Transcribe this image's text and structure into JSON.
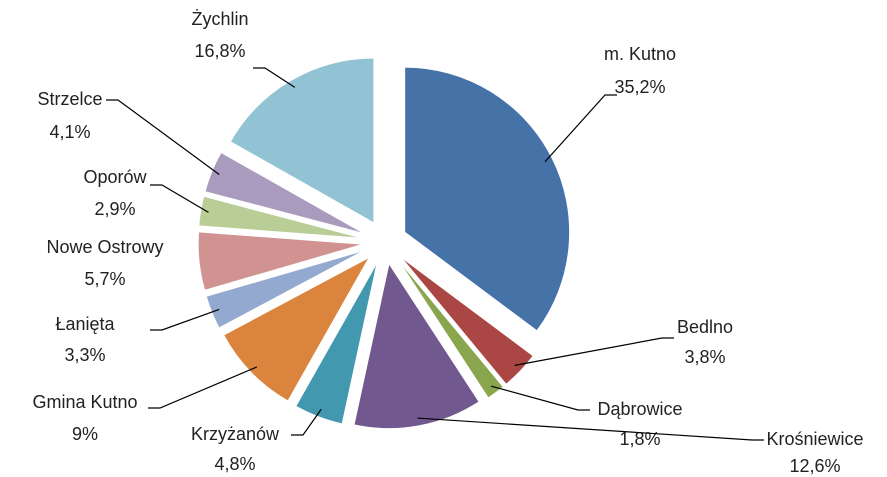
{
  "chart_data": {
    "type": "pie",
    "categories": [
      "m. Kutno",
      "Bedlno",
      "Dąbrowice",
      "Krośniewice",
      "Krzyżanów",
      "Gmina Kutno",
      "Łanięta",
      "Nowe Ostrowy",
      "Oporów",
      "Strzelce",
      "Żychlin"
    ],
    "values": [
      35.2,
      3.8,
      1.8,
      12.6,
      4.8,
      9,
      3.3,
      5.7,
      2.9,
      4.1,
      16.8
    ],
    "value_labels": [
      "35,2%",
      "3,8%",
      "1,8%",
      "12,6%",
      "4,8%",
      "9%",
      "3,3%",
      "5,7%",
      "2,9%",
      "4,1%",
      "16,8%"
    ],
    "colors": [
      "#4572a7",
      "#aa4643",
      "#89a54e",
      "#71588f",
      "#4198af",
      "#db843d",
      "#93a9cf",
      "#d19392",
      "#b9cd96",
      "#a99bbd",
      "#92c3d4"
    ]
  }
}
